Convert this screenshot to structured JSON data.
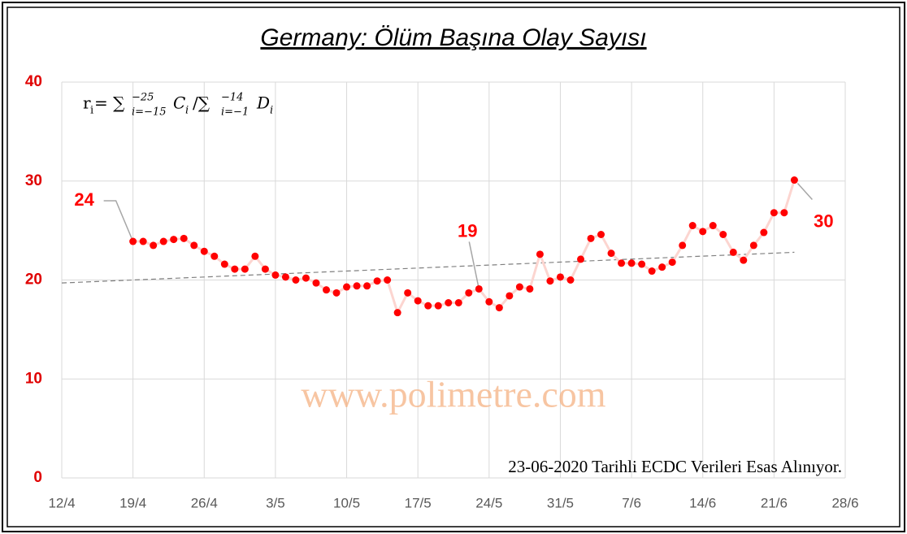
{
  "chart_data": {
    "type": "line",
    "title": "Germany: Ölüm Başına Olay Sayısı",
    "x": [
      "19/4",
      "20/4",
      "21/4",
      "22/4",
      "23/4",
      "24/4",
      "25/4",
      "26/4",
      "27/4",
      "28/4",
      "29/4",
      "30/4",
      "1/5",
      "2/5",
      "3/5",
      "4/5",
      "5/5",
      "6/5",
      "7/5",
      "8/5",
      "9/5",
      "10/5",
      "11/5",
      "12/5",
      "13/5",
      "14/5",
      "15/5",
      "16/5",
      "17/5",
      "18/5",
      "19/5",
      "20/5",
      "21/5",
      "22/5",
      "23/5",
      "24/5",
      "25/5",
      "26/5",
      "27/5",
      "28/5",
      "29/5",
      "30/5",
      "31/5",
      "1/6",
      "2/6",
      "3/6",
      "4/6",
      "5/6",
      "6/6",
      "7/6",
      "8/6",
      "9/6",
      "10/6",
      "11/6",
      "12/6",
      "13/6",
      "14/6",
      "15/6",
      "16/6",
      "17/6",
      "18/6",
      "19/6",
      "20/6",
      "21/6",
      "22/6",
      "23/6"
    ],
    "series": [
      {
        "name": "Germany",
        "color": "#ff0000",
        "line_color": "#fcd5d0",
        "values": [
          23.9,
          23.9,
          23.5,
          23.9,
          24.1,
          24.2,
          23.5,
          22.9,
          22.4,
          21.6,
          21.1,
          21.1,
          22.4,
          21.1,
          20.5,
          20.3,
          20.0,
          20.2,
          19.7,
          19.0,
          18.7,
          19.3,
          19.4,
          19.4,
          19.9,
          20.0,
          16.7,
          18.7,
          17.9,
          17.4,
          17.4,
          17.7,
          17.7,
          18.7,
          19.1,
          17.8,
          17.2,
          18.4,
          19.3,
          19.1,
          22.6,
          19.9,
          20.3,
          20.0,
          22.1,
          24.2,
          24.6,
          22.7,
          21.7,
          21.7,
          21.6,
          20.9,
          21.3,
          21.8,
          23.5,
          25.5,
          24.9,
          25.5,
          24.6,
          22.8,
          22.0,
          23.5,
          24.8,
          26.8,
          26.8,
          30.1
        ],
        "value_labels": [
          "24",
          null,
          null,
          null,
          null,
          null,
          null,
          null,
          null,
          null,
          null,
          null,
          null,
          null,
          null,
          null,
          null,
          null,
          null,
          null,
          null,
          null,
          null,
          null,
          null,
          null,
          null,
          null,
          null,
          null,
          null,
          null,
          null,
          null,
          "19",
          null,
          null,
          null,
          null,
          null,
          null,
          null,
          null,
          null,
          null,
          null,
          null,
          null,
          null,
          null,
          null,
          null,
          null,
          null,
          null,
          null,
          null,
          null,
          null,
          null,
          null,
          null,
          null,
          null,
          null,
          "30"
        ]
      }
    ],
    "trend": {
      "x": [
        "12/4",
        "23/6"
      ],
      "values": [
        19.7,
        22.8
      ],
      "color": "#7f7f7f"
    },
    "xlim": [
      "12/4",
      "28/6"
    ],
    "xticks": [
      "12/4",
      "19/4",
      "26/4",
      "3/5",
      "10/5",
      "17/5",
      "24/5",
      "31/5",
      "7/6",
      "14/6",
      "21/6",
      "28/6"
    ],
    "ylim": [
      0,
      40
    ],
    "yticks": [
      0,
      10,
      20,
      30,
      40
    ],
    "grid": true,
    "formula": {
      "lhs": "r",
      "lhs_sub": "i",
      "eq": "= ∑",
      "sup1": "−25",
      "sub1": "i=−15",
      "term1": "C",
      "term1_sub": "i",
      "div": "/∑",
      "sup2": "−14",
      "sub2": "i=−1",
      "term2": "D",
      "term2_sub": "i"
    },
    "watermark": "www.polimetre.com",
    "note": "23-06-2020 Tarihli ECDC Verileri Esas Alınıyor."
  }
}
